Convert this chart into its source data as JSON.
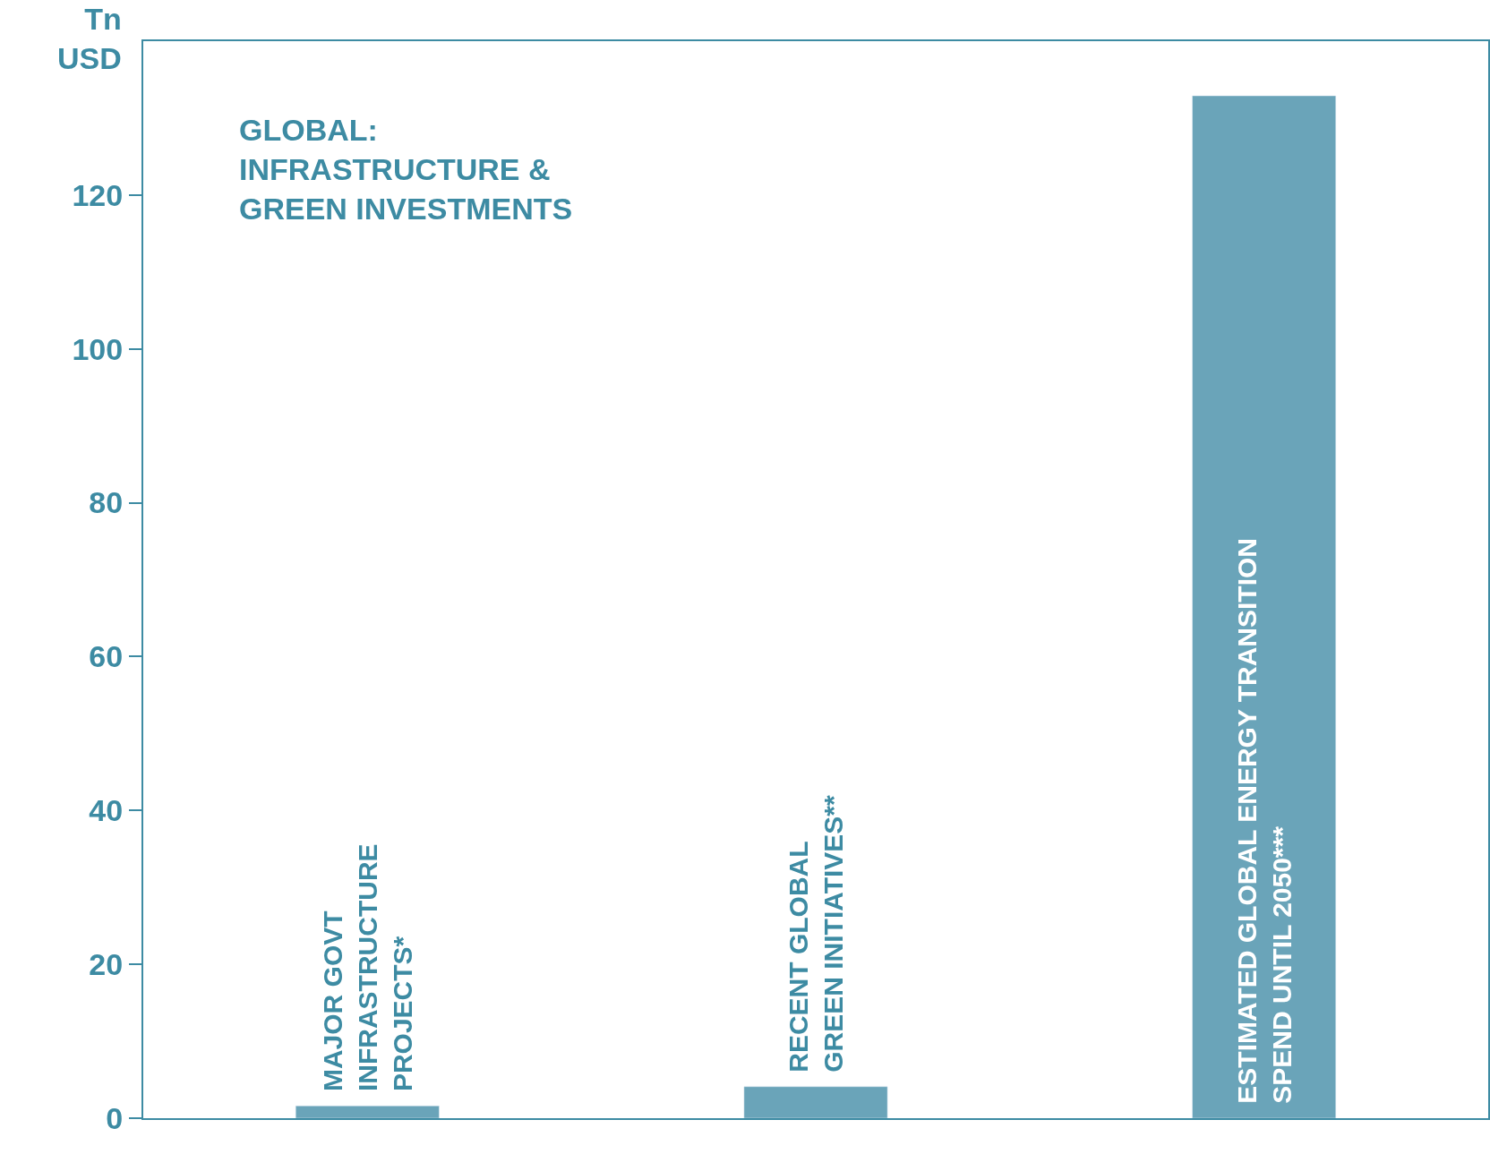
{
  "chart_data": {
    "type": "bar",
    "title": "GLOBAL:\nINFRASTRUCTURE &\nGREEN INVESTMENTS",
    "ylabel": "Tn\nUSD",
    "categories": [
      "MAJOR GOVT\nINFRASTRUCTURE\nPROJECTS*",
      "RECENT GLOBAL\nGREEN INITIATIVES**",
      "ESTIMATED GLOBAL ENERGY TRANSITION\nSPEND UNTIL 2050***"
    ],
    "values": [
      1.6,
      4.1,
      132.9
    ],
    "color": "#6aa4b9",
    "ylim": [
      0,
      140
    ],
    "yticks": [
      0,
      20,
      40,
      60,
      80,
      100,
      120
    ],
    "tick_labels": "y"
  }
}
